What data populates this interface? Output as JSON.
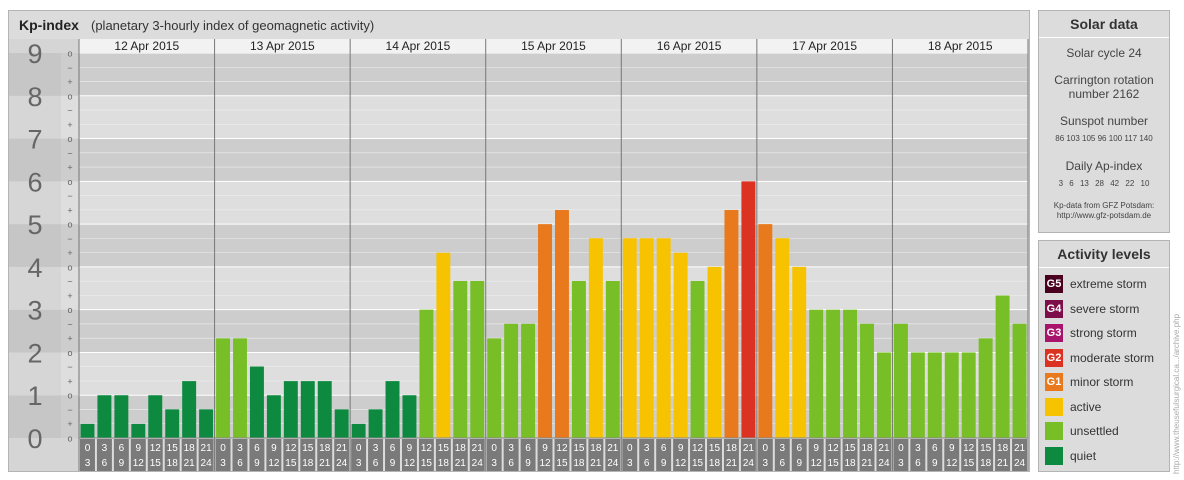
{
  "chart_panel": {
    "title": "Kp-index",
    "subtitle": "(planetary 3-hourly index of geomagnetic activity)"
  },
  "chart_data": {
    "type": "bar",
    "ylim": [
      0,
      9
    ],
    "y_ticks": [
      "0",
      "1",
      "2",
      "3",
      "4",
      "5",
      "6",
      "7",
      "8",
      "9"
    ],
    "minor_ticks": [
      "−",
      "o",
      "+"
    ],
    "days": [
      "12 Apr 2015",
      "13 Apr 2015",
      "14 Apr 2015",
      "15 Apr 2015",
      "16 Apr 2015",
      "17 Apr 2015",
      "18 Apr 2015"
    ],
    "interval_top": [
      "0",
      "3",
      "6",
      "9",
      "12",
      "15",
      "18",
      "21"
    ],
    "interval_bottom": [
      "3",
      "6",
      "9",
      "12",
      "15",
      "18",
      "21",
      "24"
    ],
    "values": [
      0.33,
      1,
      1,
      0.33,
      1,
      0.67,
      1.33,
      0.67,
      2.33,
      2.33,
      1.67,
      1,
      1.33,
      1.33,
      1.33,
      0.67,
      0.33,
      0.67,
      1.33,
      1,
      3,
      4.33,
      3.67,
      3.67,
      2.33,
      2.67,
      2.67,
      5,
      5.33,
      3.67,
      4.67,
      3.67,
      4.67,
      4.67,
      4.67,
      4.33,
      3.67,
      4,
      5.33,
      6,
      5,
      4.67,
      4,
      3,
      3,
      3,
      2.67,
      2,
      2.67,
      2,
      2,
      2,
      2,
      2.33,
      3.33,
      2.67
    ]
  },
  "activity_colors": {
    "quiet": "#0d8a40",
    "unsettled": "#78bf27",
    "active": "#f7c300",
    "g1": "#e87a1d",
    "g2": "#dc3222",
    "g3": "#a8146b",
    "g4": "#7d0e49",
    "g5": "#4a001f"
  },
  "solar_data": {
    "title": "Solar data",
    "solar_cycle": "Solar cycle 24",
    "carrington_line1": "Carrington rotation",
    "carrington_line2": "number 2162",
    "sunspot_title": "Sunspot number",
    "sunspot_values": [
      "86",
      "103",
      "105",
      "96",
      "100",
      "117",
      "140"
    ],
    "ap_title": "Daily Ap-index",
    "ap_values": [
      "3",
      "6",
      "13",
      "28",
      "42",
      "22",
      "10"
    ],
    "credit_line1": "Kp-data from GFZ Potsdam:",
    "credit_line2": "http://www.gfz-potsdam.de"
  },
  "activity_levels": {
    "title": "Activity levels",
    "items": [
      {
        "badge": "G5",
        "label": "extreme storm",
        "color": "#4a001f"
      },
      {
        "badge": "G4",
        "label": "severe storm",
        "color": "#7d0e49"
      },
      {
        "badge": "G3",
        "label": "strong storm",
        "color": "#a8146b"
      },
      {
        "badge": "G2",
        "label": "moderate storm",
        "color": "#dc3222"
      },
      {
        "badge": "G1",
        "label": "minor storm",
        "color": "#e87a1d"
      },
      {
        "badge": "",
        "label": "active",
        "color": "#f7c300"
      },
      {
        "badge": "",
        "label": "unsettled",
        "color": "#78bf27"
      },
      {
        "badge": "",
        "label": "quiet",
        "color": "#0d8a40"
      }
    ]
  },
  "vertical_credit": "http://www.theusefulsurgical.ca.../archive.php"
}
